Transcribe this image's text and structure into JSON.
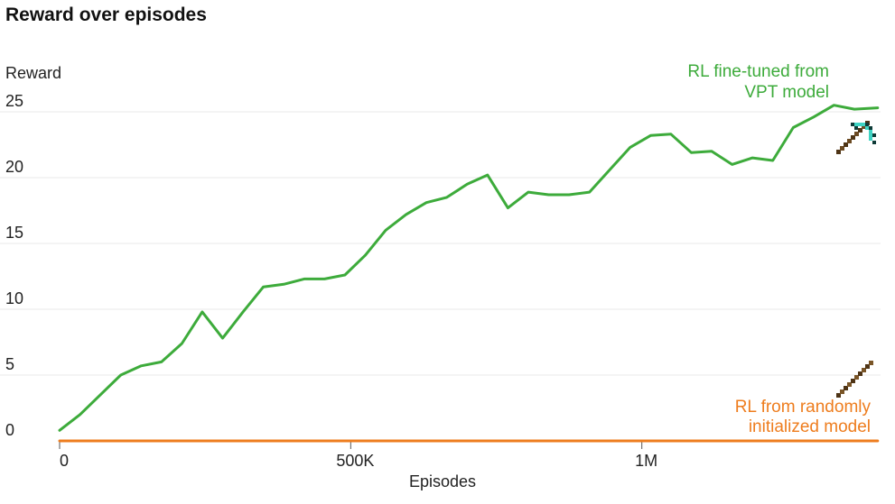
{
  "chart_data": {
    "type": "line",
    "title": "Reward over episodes",
    "xlabel": "Episodes",
    "ylabel": "Reward",
    "xlim": [
      0,
      1410000
    ],
    "ylim": [
      0,
      25
    ],
    "grid": true,
    "x_ticks": [
      {
        "value": 0,
        "label": "0"
      },
      {
        "value": 500000,
        "label": "500K"
      },
      {
        "value": 1000000,
        "label": "1M"
      }
    ],
    "y_ticks": [
      {
        "value": 0,
        "label": "0"
      },
      {
        "value": 5,
        "label": "5"
      },
      {
        "value": 10,
        "label": "10"
      },
      {
        "value": 15,
        "label": "15"
      },
      {
        "value": 20,
        "label": "20"
      },
      {
        "value": 25,
        "label": "25"
      }
    ],
    "series": [
      {
        "name": "RL fine-tuned from VPT model",
        "label_lines": [
          "RL fine-tuned from",
          "VPT model"
        ],
        "color": "#3dab3b",
        "icon": "diamond-pickaxe-icon",
        "x": [
          0,
          35000,
          70000,
          105000,
          140000,
          175000,
          210000,
          245000,
          280000,
          315000,
          350000,
          385000,
          420000,
          455000,
          490000,
          525000,
          560000,
          595000,
          630000,
          665000,
          700000,
          735000,
          770000,
          805000,
          840000,
          875000,
          910000,
          945000,
          980000,
          1015000,
          1050000,
          1085000,
          1120000,
          1155000,
          1190000,
          1225000,
          1260000,
          1295000,
          1330000,
          1365000,
          1405000
        ],
        "y": [
          0.8,
          2.0,
          3.5,
          5.0,
          5.7,
          6.0,
          7.4,
          9.8,
          7.8,
          9.8,
          11.7,
          11.9,
          12.3,
          12.3,
          12.6,
          14.1,
          16.0,
          17.2,
          18.1,
          18.5,
          19.5,
          20.2,
          17.7,
          18.9,
          18.7,
          18.7,
          18.9,
          20.6,
          22.3,
          23.2,
          23.3,
          21.9,
          22.0,
          21.0,
          21.5,
          21.3,
          23.8,
          24.6,
          25.5,
          25.2,
          25.3
        ]
      },
      {
        "name": "RL from randomly initialized model",
        "label_lines": [
          "RL from randomly",
          "initialized model"
        ],
        "color": "#ee7d1e",
        "icon": "wooden-pickaxe-icon",
        "x": [
          0,
          1405000
        ],
        "y": [
          0,
          0
        ]
      }
    ]
  }
}
